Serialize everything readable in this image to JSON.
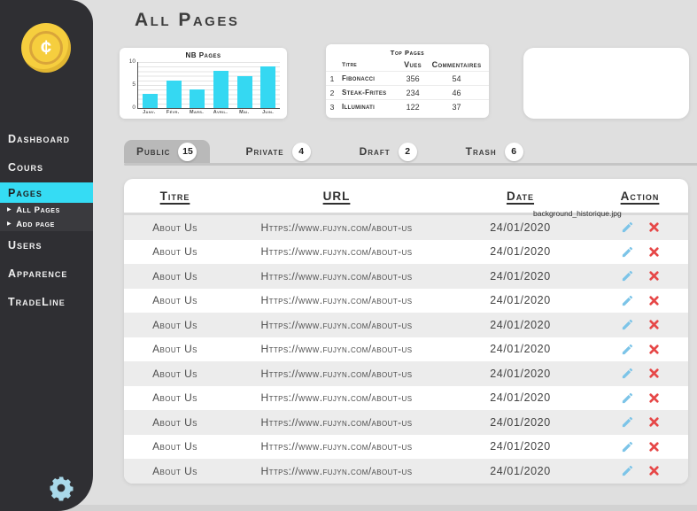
{
  "colors": {
    "accent_cyan": "#35dcf4",
    "sidebar_dark": "#2f2f33",
    "danger_red": "#e64747",
    "edit_blue": "#7cc4e8",
    "gear_blue": "#a9d9ea",
    "coin_gold": "#f6ce3e"
  },
  "sidebar": {
    "logo_symbol": "¢",
    "items": [
      {
        "label": "Dashboard",
        "active": false
      },
      {
        "label": "Cours",
        "active": false
      },
      {
        "label": "Pages",
        "active": true,
        "sub": [
          {
            "label": "All Pages"
          },
          {
            "label": "Add page"
          }
        ]
      },
      {
        "label": "Users",
        "active": false
      },
      {
        "label": "Apparence",
        "active": false
      },
      {
        "label": "TradeLine",
        "active": false
      }
    ]
  },
  "header": {
    "title": "All Pages"
  },
  "chart_data": {
    "type": "bar",
    "title": "NB Pages",
    "categories": [
      "Janv.",
      "Févr.",
      "Mars.",
      "Avril.",
      "Mai.",
      "Juin."
    ],
    "values": [
      3,
      6,
      4,
      8,
      7,
      9
    ],
    "ylim": [
      0,
      10
    ],
    "yticks": [
      0,
      5,
      10
    ],
    "grid": true,
    "bar_color": "#35d8f2"
  },
  "top_pages": {
    "title": "Top Pages",
    "columns": [
      "Titre",
      "Vues",
      "Commentaires"
    ],
    "rows": [
      {
        "rank": "1",
        "titre": "Fibonacci",
        "vues": "356",
        "commentaires": "54"
      },
      {
        "rank": "2",
        "titre": "Steak-Frites",
        "vues": "234",
        "commentaires": "46"
      },
      {
        "rank": "3",
        "titre": "Illuminati",
        "vues": "122",
        "commentaires": "37"
      }
    ]
  },
  "tabs": [
    {
      "label": "Public",
      "count": "15",
      "active": true
    },
    {
      "label": "Private",
      "count": "4",
      "active": false
    },
    {
      "label": "Draft",
      "count": "2",
      "active": false
    },
    {
      "label": "Trash",
      "count": "6",
      "active": false
    }
  ],
  "pages_table": {
    "columns": [
      "Titre",
      "URL",
      "Date",
      "Action"
    ],
    "tooltip": "background_historique.jpg",
    "rows": [
      {
        "titre": "About Us",
        "url": "Https://www.fujyn.com/about-us",
        "date": "24/01/2020"
      },
      {
        "titre": "About Us",
        "url": "Https://www.fujyn.com/about-us",
        "date": "24/01/2020"
      },
      {
        "titre": "About Us",
        "url": "Https://www.fujyn.com/about-us",
        "date": "24/01/2020"
      },
      {
        "titre": "About Us",
        "url": "Https://www.fujyn.com/about-us",
        "date": "24/01/2020"
      },
      {
        "titre": "About Us",
        "url": "Https://www.fujyn.com/about-us",
        "date": "24/01/2020"
      },
      {
        "titre": "About Us",
        "url": "Https://www.fujyn.com/about-us",
        "date": "24/01/2020"
      },
      {
        "titre": "About Us",
        "url": "Https://www.fujyn.com/about-us",
        "date": "24/01/2020"
      },
      {
        "titre": "About Us",
        "url": "Https://www.fujyn.com/about-us",
        "date": "24/01/2020"
      },
      {
        "titre": "About Us",
        "url": "Https://www.fujyn.com/about-us",
        "date": "24/01/2020"
      },
      {
        "titre": "About Us",
        "url": "Https://www.fujyn.com/about-us",
        "date": "24/01/2020"
      },
      {
        "titre": "About Us",
        "url": "Https://www.fujyn.com/about-us",
        "date": "24/01/2020"
      }
    ]
  }
}
